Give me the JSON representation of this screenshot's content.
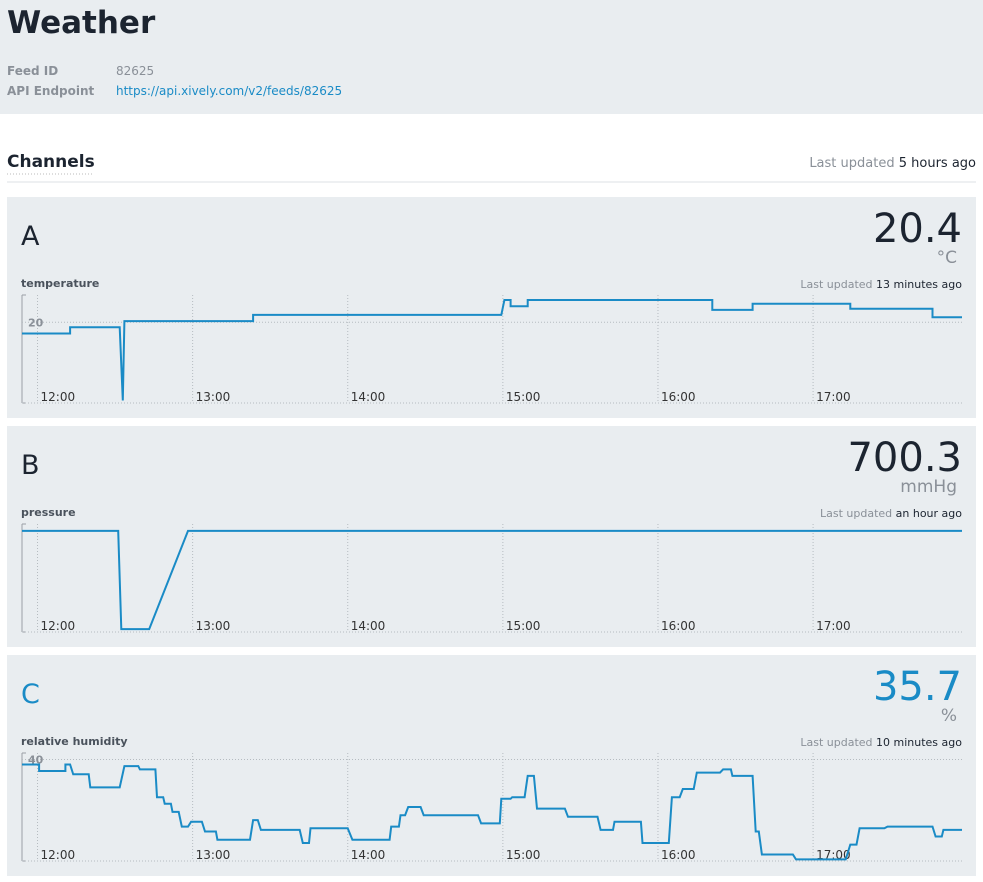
{
  "header": {
    "title": "Weather",
    "fields": [
      {
        "label": "Feed ID",
        "value": "82625"
      },
      {
        "label": "API Endpoint",
        "value": "https://api.xively.com/v2/feeds/82625"
      }
    ]
  },
  "channels": {
    "title": "Channels",
    "updated_label": "Last updated",
    "updated_value": "5 hours ago"
  },
  "chart_data": [
    {
      "type": "line",
      "channel": "A",
      "current_value": 20.4,
      "unit": "°C",
      "label": "temperature",
      "updated_label": "Last updated",
      "updated_value": "13 minutes ago",
      "color": "#1a8bc6",
      "value_color": "#1c2430",
      "xlim": [
        11.9,
        17.96
      ],
      "ylim": [
        13.5,
        22.2
      ],
      "xticks": [
        {
          "value": 12,
          "label": "12:00"
        },
        {
          "value": 13,
          "label": "13:00"
        },
        {
          "value": 14,
          "label": "14:00"
        },
        {
          "value": 15,
          "label": "15:00"
        },
        {
          "value": 16,
          "label": "16:00"
        },
        {
          "value": 17,
          "label": "17:00"
        }
      ],
      "yticks": [
        20
      ],
      "x": [
        11.9,
        12.21,
        12.21,
        12.53,
        12.55,
        12.56,
        13.39,
        13.39,
        14.99,
        15.01,
        15.05,
        15.05,
        15.16,
        15.16,
        16.35,
        16.35,
        16.61,
        16.61,
        17.24,
        17.24,
        17.77,
        17.77,
        17.96
      ],
      "values": [
        19.1,
        19.1,
        19.6,
        19.6,
        13.7,
        20.1,
        20.1,
        20.6,
        20.6,
        21.8,
        21.8,
        21.3,
        21.3,
        21.8,
        21.8,
        21.0,
        21.0,
        21.5,
        21.5,
        21.1,
        21.1,
        20.4,
        20.4
      ]
    },
    {
      "type": "line",
      "channel": "B",
      "current_value": 700.3,
      "unit": "mmHg",
      "label": "pressure",
      "updated_label": "Last updated",
      "updated_value": "an hour ago",
      "color": "#1a8bc6",
      "value_color": "#1c2430",
      "xlim": [
        11.9,
        17.96
      ],
      "ylim": [
        690,
        701
      ],
      "xticks": [
        {
          "value": 12,
          "label": "12:00"
        },
        {
          "value": 13,
          "label": "13:00"
        },
        {
          "value": 14,
          "label": "14:00"
        },
        {
          "value": 15,
          "label": "15:00"
        },
        {
          "value": 16,
          "label": "16:00"
        },
        {
          "value": 17,
          "label": "17:00"
        }
      ],
      "x": [
        11.9,
        12.52,
        12.54,
        12.72,
        12.97,
        17.96
      ],
      "values": [
        700.3,
        700.3,
        690.3,
        690.3,
        700.3,
        700.3
      ]
    },
    {
      "type": "line",
      "channel": "C",
      "current_value": 35.7,
      "unit": "%",
      "label": "relative humidity",
      "updated_label": "Last updated",
      "updated_value": "10 minutes ago",
      "color": "#1a8bc6",
      "value_color": "#1a8bc6",
      "xlim": [
        11.9,
        17.96
      ],
      "ylim": [
        33.8,
        40.4
      ],
      "xticks": [
        {
          "value": 12,
          "label": "12:00"
        },
        {
          "value": 13,
          "label": "13:00"
        },
        {
          "value": 14,
          "label": "14:00"
        },
        {
          "value": 15,
          "label": "15:00"
        },
        {
          "value": 16,
          "label": "16:00"
        },
        {
          "value": 17,
          "label": "17:00"
        }
      ],
      "yticks": [
        40
      ],
      "x": [
        11.9,
        12.01,
        12.01,
        12.18,
        12.18,
        12.21,
        12.23,
        12.33,
        12.34,
        12.53,
        12.56,
        12.65,
        12.66,
        12.76,
        12.77,
        12.81,
        12.82,
        12.86,
        12.87,
        12.91,
        12.93,
        12.97,
        12.99,
        13.06,
        13.08,
        13.15,
        13.16,
        13.37,
        13.39,
        13.42,
        13.44,
        13.69,
        13.71,
        13.75,
        13.76,
        14.0,
        14.03,
        14.27,
        14.28,
        14.33,
        14.34,
        14.37,
        14.39,
        14.47,
        14.49,
        14.84,
        14.86,
        14.98,
        14.99,
        15.05,
        15.06,
        15.14,
        15.16,
        15.2,
        15.22,
        15.4,
        15.42,
        15.61,
        15.63,
        15.71,
        15.72,
        15.89,
        15.9,
        16.07,
        16.09,
        16.14,
        16.16,
        16.23,
        16.25,
        16.4,
        16.42,
        16.47,
        16.48,
        16.61,
        16.63,
        16.65,
        16.67,
        16.87,
        16.89,
        17.21,
        17.24,
        17.28,
        17.3,
        17.46,
        17.48,
        17.77,
        17.79,
        17.83,
        17.84,
        17.96
      ],
      "values": [
        39.7,
        39.7,
        39.3,
        39.3,
        39.7,
        39.7,
        39.1,
        39.1,
        38.3,
        38.3,
        39.6,
        39.6,
        39.4,
        39.4,
        37.7,
        37.7,
        37.3,
        37.3,
        36.8,
        36.8,
        35.9,
        35.9,
        36.2,
        36.2,
        35.6,
        35.6,
        35.1,
        35.1,
        36.3,
        36.3,
        35.7,
        35.7,
        34.9,
        34.9,
        35.8,
        35.8,
        35.1,
        35.1,
        35.9,
        35.9,
        36.6,
        36.6,
        37.1,
        37.1,
        36.6,
        36.6,
        36.1,
        36.1,
        37.6,
        37.6,
        37.7,
        37.7,
        39.0,
        39.0,
        37.0,
        37.0,
        36.5,
        36.5,
        35.7,
        35.7,
        36.2,
        36.2,
        34.9,
        34.9,
        37.7,
        37.7,
        38.2,
        38.2,
        39.2,
        39.2,
        39.4,
        39.4,
        39.0,
        39.0,
        35.6,
        35.6,
        34.2,
        34.2,
        33.9,
        33.9,
        34.8,
        34.8,
        35.8,
        35.8,
        35.9,
        35.9,
        35.3,
        35.3,
        35.7,
        35.7
      ]
    }
  ]
}
